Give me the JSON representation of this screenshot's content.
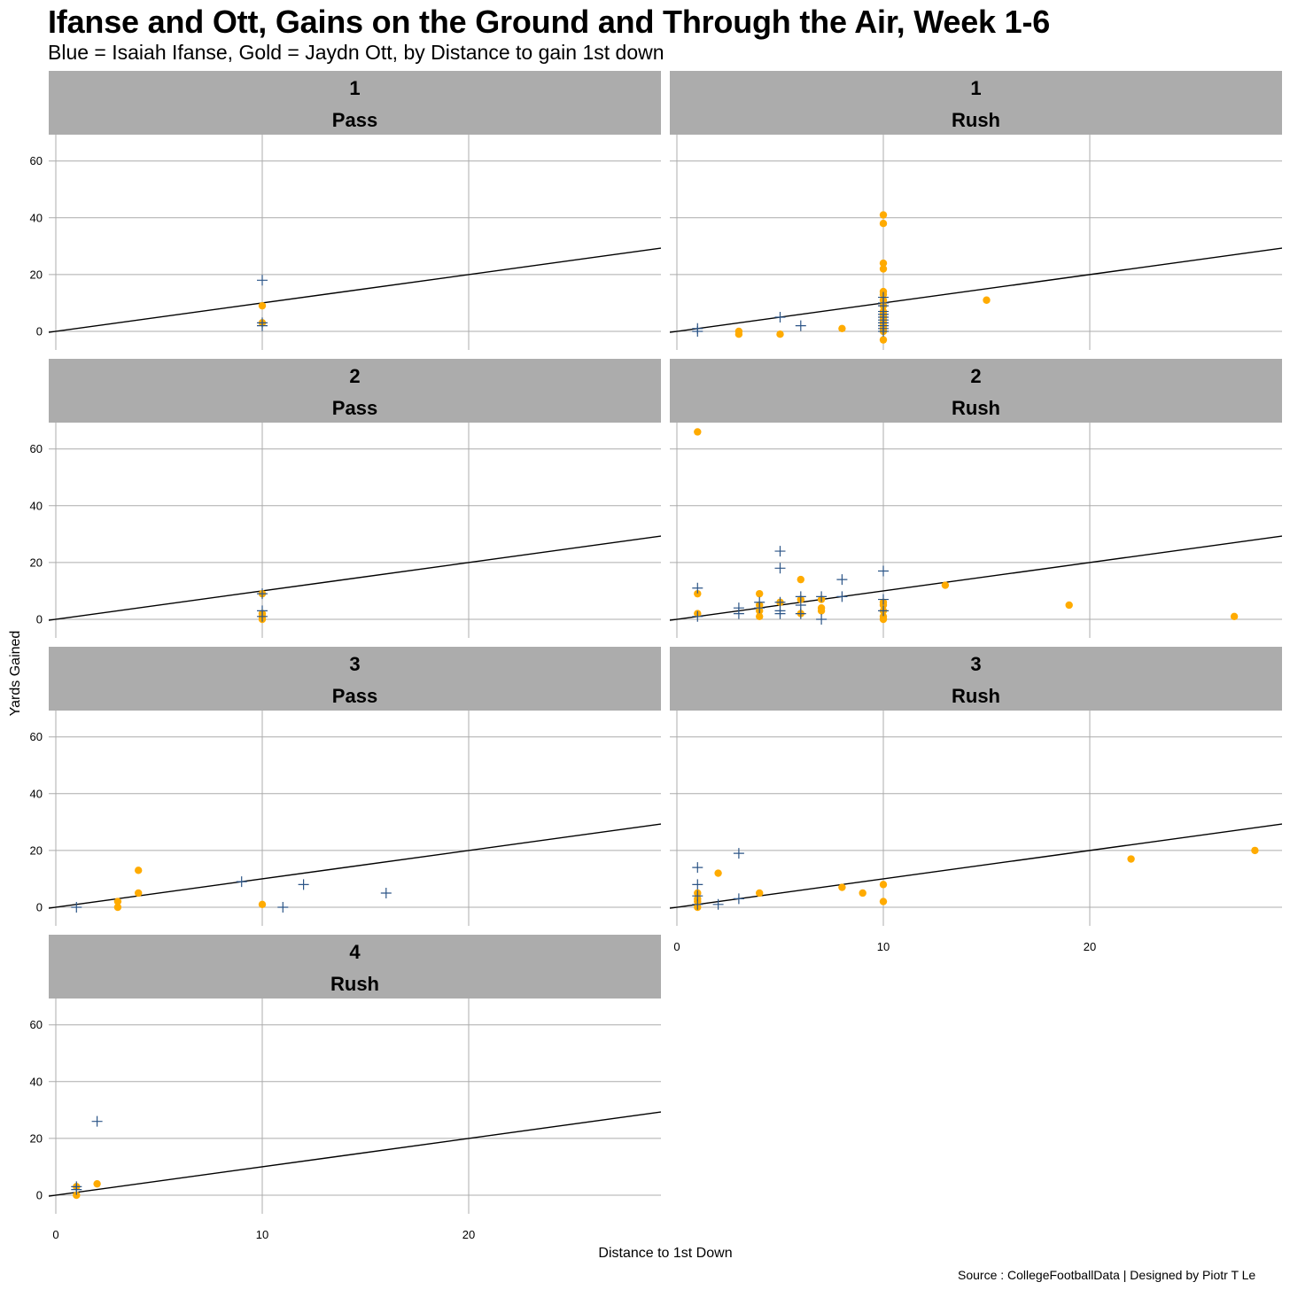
{
  "title": "Ifanse and Ott, Gains on the Ground and Through the Air, Week 1-6",
  "subtitle": "Blue = Isaiah Ifanse, Gold = Jaydn Ott, by Distance to gain 1st down",
  "caption": "Source : CollegeFootballData | Designed by Piotr T Le",
  "colors": {
    "ifanse": "#2c5587",
    "ott": "#ffab00",
    "strip_bg": "#acacac",
    "grid": "#acacac",
    "reference_line": "#000000"
  },
  "chart_data": {
    "type": "scatter",
    "title": "Ifanse and Ott, Gains on the Ground and Through the Air, Week 1-6",
    "subtitle": "Blue = Isaiah Ifanse, Gold = Jaydn Ott, by Distance to gain 1st down",
    "xlabel": "Distance to 1st Down",
    "ylabel": "Yards Gained",
    "xlim": [
      0,
      29
    ],
    "ylim": [
      -6,
      69
    ],
    "x_ticks": [
      0,
      10,
      20
    ],
    "y_ticks": [
      0,
      20,
      40,
      60
    ],
    "grid": true,
    "reference_line": {
      "slope": 1,
      "intercept": 0
    },
    "series": [
      {
        "name": "Isaiah Ifanse",
        "marker": "plus",
        "color": "#2c5587"
      },
      {
        "name": "Jaydn Ott",
        "marker": "circle",
        "color": "#ffab00"
      }
    ],
    "panels": [
      {
        "down": "1",
        "play": "Pass",
        "ifanse": [
          [
            10,
            18
          ],
          [
            10,
            3
          ],
          [
            10,
            2
          ]
        ],
        "ott": [
          [
            10,
            9
          ],
          [
            10,
            3
          ]
        ]
      },
      {
        "down": "1",
        "play": "Rush",
        "ifanse": [
          [
            1,
            1
          ],
          [
            1,
            0
          ],
          [
            5,
            5
          ],
          [
            6,
            2
          ],
          [
            10,
            12
          ],
          [
            10,
            10
          ],
          [
            10,
            9
          ],
          [
            10,
            7
          ],
          [
            10,
            6
          ],
          [
            10,
            5
          ],
          [
            10,
            4
          ],
          [
            10,
            3
          ],
          [
            10,
            2
          ],
          [
            10,
            1
          ],
          [
            10,
            0
          ]
        ],
        "ott": [
          [
            3,
            0
          ],
          [
            3,
            -1
          ],
          [
            5,
            -1
          ],
          [
            8,
            1
          ],
          [
            10,
            41
          ],
          [
            10,
            38
          ],
          [
            10,
            24
          ],
          [
            10,
            22
          ],
          [
            10,
            14
          ],
          [
            10,
            13
          ],
          [
            10,
            11
          ],
          [
            10,
            9
          ],
          [
            10,
            7
          ],
          [
            10,
            6
          ],
          [
            10,
            5
          ],
          [
            10,
            4
          ],
          [
            10,
            3
          ],
          [
            10,
            2
          ],
          [
            10,
            1
          ],
          [
            10,
            0
          ],
          [
            10,
            -3
          ],
          [
            15,
            11
          ]
        ]
      },
      {
        "down": "2",
        "play": "Pass",
        "ifanse": [
          [
            10,
            9
          ],
          [
            10,
            3
          ],
          [
            10,
            1
          ]
        ],
        "ott": [
          [
            10,
            9
          ],
          [
            10,
            2
          ],
          [
            10,
            1
          ],
          [
            10,
            0
          ]
        ]
      },
      {
        "down": "2",
        "play": "Rush",
        "ifanse": [
          [
            1,
            11
          ],
          [
            1,
            1
          ],
          [
            3,
            4
          ],
          [
            3,
            2
          ],
          [
            4,
            6
          ],
          [
            4,
            4
          ],
          [
            5,
            24
          ],
          [
            5,
            18
          ],
          [
            5,
            6
          ],
          [
            5,
            3
          ],
          [
            5,
            2
          ],
          [
            6,
            8
          ],
          [
            6,
            5
          ],
          [
            6,
            2
          ],
          [
            7,
            8
          ],
          [
            7,
            0
          ],
          [
            8,
            14
          ],
          [
            8,
            8
          ],
          [
            10,
            17
          ],
          [
            10,
            7
          ],
          [
            10,
            3
          ]
        ],
        "ott": [
          [
            1,
            66
          ],
          [
            1,
            9
          ],
          [
            1,
            2
          ],
          [
            4,
            9
          ],
          [
            4,
            5
          ],
          [
            4,
            3
          ],
          [
            4,
            1
          ],
          [
            5,
            6
          ],
          [
            6,
            14
          ],
          [
            6,
            7
          ],
          [
            6,
            2
          ],
          [
            7,
            7
          ],
          [
            7,
            4
          ],
          [
            7,
            3
          ],
          [
            10,
            6
          ],
          [
            10,
            5
          ],
          [
            10,
            3
          ],
          [
            10,
            1
          ],
          [
            10,
            0
          ],
          [
            13,
            12
          ],
          [
            19,
            5
          ],
          [
            27,
            1
          ]
        ]
      },
      {
        "down": "3",
        "play": "Pass",
        "ifanse": [
          [
            1,
            0
          ],
          [
            9,
            9
          ],
          [
            11,
            0
          ],
          [
            12,
            8
          ],
          [
            16,
            5
          ]
        ],
        "ott": [
          [
            3,
            2
          ],
          [
            3,
            0
          ],
          [
            4,
            13
          ],
          [
            4,
            5
          ],
          [
            10,
            1
          ]
        ]
      },
      {
        "down": "3",
        "play": "Rush",
        "ifanse": [
          [
            1,
            14
          ],
          [
            1,
            8
          ],
          [
            1,
            4
          ],
          [
            1,
            1
          ],
          [
            2,
            1
          ],
          [
            3,
            19
          ],
          [
            3,
            3
          ]
        ],
        "ott": [
          [
            1,
            5
          ],
          [
            1,
            3
          ],
          [
            1,
            2
          ],
          [
            1,
            0
          ],
          [
            2,
            12
          ],
          [
            4,
            5
          ],
          [
            8,
            7
          ],
          [
            9,
            5
          ],
          [
            10,
            8
          ],
          [
            10,
            2
          ],
          [
            22,
            17
          ],
          [
            28,
            20
          ]
        ]
      },
      {
        "down": "4",
        "play": "Rush",
        "ifanse": [
          [
            1,
            3
          ],
          [
            1,
            2
          ],
          [
            2,
            26
          ]
        ],
        "ott": [
          [
            1,
            3
          ],
          [
            1,
            0
          ],
          [
            2,
            4
          ]
        ]
      }
    ]
  }
}
